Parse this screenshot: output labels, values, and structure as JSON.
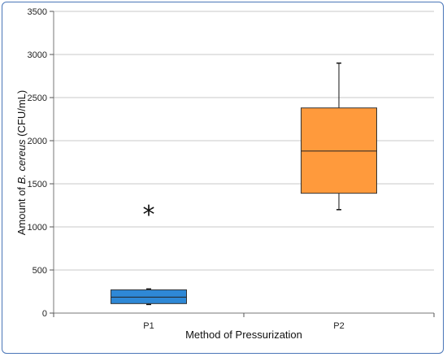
{
  "chart_data": {
    "type": "box",
    "xlabel": "Method of Pressurization",
    "ylabel": {
      "prefix": "Amount of ",
      "italic": "B. cereus",
      "suffix": " (CFU/mL)"
    },
    "ylim": [
      0,
      3500
    ],
    "yticks": [
      0,
      500,
      1000,
      1500,
      2000,
      2500,
      3000,
      3500
    ],
    "grid": true,
    "categories": [
      "P1",
      "P2"
    ],
    "boxes": [
      {
        "category": "P1",
        "whisker_low": 100,
        "q1": 110,
        "median": 185,
        "q3": 270,
        "whisker_high": 280,
        "color": "#2e88d6"
      },
      {
        "category": "P2",
        "whisker_low": 1200,
        "q1": 1390,
        "median": 1880,
        "q3": 2380,
        "whisker_high": 2900,
        "color": "#ff9a3c"
      }
    ],
    "annotations": [
      {
        "text": "*",
        "category": "P1",
        "y": 1180
      }
    ]
  }
}
